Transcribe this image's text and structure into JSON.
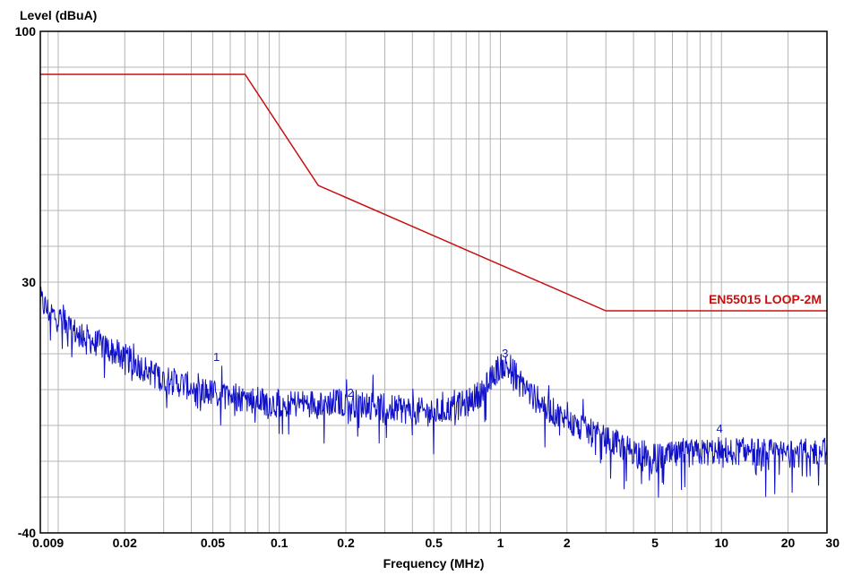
{
  "chart_data": {
    "type": "line",
    "title": "",
    "ylabel": "Level (dBuA)",
    "xlabel": "Frequency (MHz)",
    "x_scale": "log",
    "xlim": [
      0.0083,
      30
    ],
    "ylim": [
      -40,
      100
    ],
    "grid": true,
    "y_tick_labels": [
      "100",
      "30",
      "-40"
    ],
    "y_ticks": [
      100,
      30,
      -40
    ],
    "x_tick_labels": [
      "0.009",
      "0.02",
      "0.05",
      "0.1",
      "0.2",
      "0.5",
      "1",
      "2",
      "5",
      "10",
      "20",
      "30"
    ],
    "x_ticks": [
      0.009,
      0.02,
      0.05,
      0.1,
      0.2,
      0.5,
      1,
      2,
      5,
      10,
      20,
      30
    ],
    "series": [
      {
        "name": "EN55015 LOOP-2M",
        "color": "#c81010",
        "x": [
          0.0083,
          0.07,
          0.15,
          3.0,
          30
        ],
        "y": [
          88,
          88,
          57,
          22,
          22
        ]
      },
      {
        "name": "",
        "color": "#1010c8",
        "x": [
          0.0083,
          0.009,
          0.012,
          0.02,
          0.03,
          0.05,
          0.07,
          0.1,
          0.2,
          0.35,
          0.5,
          0.7,
          0.85,
          1.0,
          1.15,
          1.4,
          2.0,
          3.0,
          4.0,
          5.0,
          7.0,
          10,
          15,
          20,
          30
        ],
        "y": [
          25,
          22,
          16,
          9,
          3,
          -1,
          -2.5,
          -4,
          -3.5,
          -5.5,
          -6.5,
          -4,
          0,
          7,
          5,
          -2,
          -9,
          -14,
          -17,
          -19,
          -18,
          -17,
          -17.5,
          -18,
          -17
        ]
      }
    ],
    "markers": [
      {
        "label": "1",
        "x": 0.052,
        "y": 8
      },
      {
        "label": "2",
        "x": 0.21,
        "y": -2
      },
      {
        "label": "3",
        "x": 1.05,
        "y": 9
      },
      {
        "label": "4",
        "x": 9.8,
        "y": -12
      }
    ],
    "annotations": [
      "EN55015 LOOP-2M"
    ]
  }
}
